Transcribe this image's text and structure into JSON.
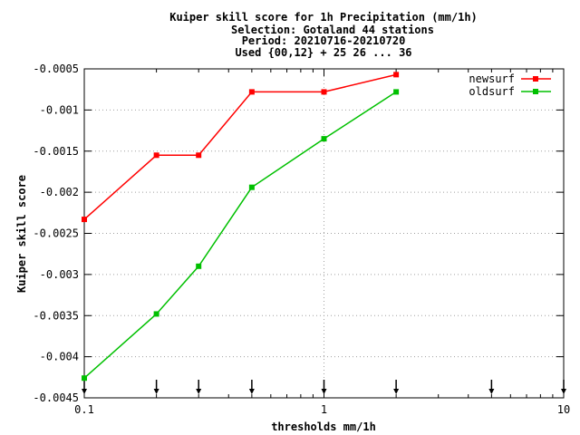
{
  "chart_data": {
    "type": "line",
    "title_lines": [
      "Kuiper skill score  for 1h Precipitation (mm/1h)",
      "Selection: Gotaland     44 stations",
      "Period: 20210716-20210720",
      "Used {00,12} + 25 26 ... 36"
    ],
    "xlabel": "thresholds mm/1h",
    "ylabel": "Kuiper skill score",
    "x_scale": "log",
    "xlim": [
      0.1,
      10
    ],
    "ylim": [
      -0.0045,
      -0.0005
    ],
    "x_ticks": [
      {
        "value": 0.1,
        "label": "0.1"
      },
      {
        "value": 1,
        "label": "1"
      },
      {
        "value": 10,
        "label": "10"
      }
    ],
    "y_ticks": [
      {
        "value": -0.0005,
        "label": "-0.0005"
      },
      {
        "value": -0.001,
        "label": "-0.001"
      },
      {
        "value": -0.0015,
        "label": "-0.0015"
      },
      {
        "value": -0.002,
        "label": "-0.002"
      },
      {
        "value": -0.0025,
        "label": "-0.0025"
      },
      {
        "value": -0.003,
        "label": "-0.003"
      },
      {
        "value": -0.0035,
        "label": "-0.0035"
      },
      {
        "value": -0.004,
        "label": "-0.004"
      },
      {
        "value": -0.0045,
        "label": "-0.0045"
      }
    ],
    "grid": true,
    "legend_position": "top-right",
    "threshold_markers": [
      0.1,
      0.2,
      0.3,
      0.5,
      1,
      2,
      5,
      10
    ],
    "series": [
      {
        "name": "newsurf",
        "color": "#ff0000",
        "x": [
          0.1,
          0.2,
          0.3,
          0.5,
          1,
          2
        ],
        "y": [
          -0.00233,
          -0.00155,
          -0.00155,
          -0.00078,
          -0.00078,
          -0.00057
        ]
      },
      {
        "name": "oldsurf",
        "color": "#00c000",
        "x": [
          0.1,
          0.2,
          0.3,
          0.5,
          1,
          2
        ],
        "y": [
          -0.00426,
          -0.00348,
          -0.0029,
          -0.00194,
          -0.00135,
          -0.00078
        ]
      }
    ]
  }
}
